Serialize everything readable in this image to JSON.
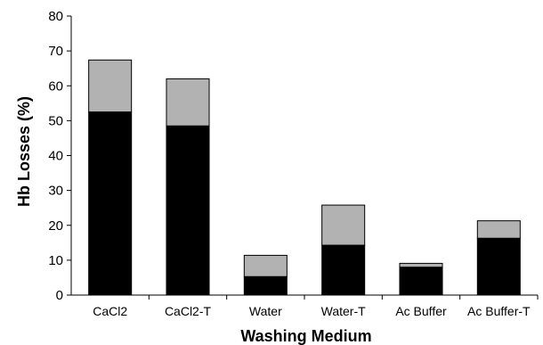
{
  "chart_data": {
    "type": "bar",
    "stacked": true,
    "title": "",
    "xlabel": "Washing Medium",
    "ylabel": "Hb Losses (%)",
    "ylim": [
      0,
      80
    ],
    "yticks": [
      0,
      10,
      20,
      30,
      40,
      50,
      60,
      70,
      80
    ],
    "grid": false,
    "legend": "none",
    "categories": [
      "CaCl2",
      "CaCl2-T",
      "Water",
      "Water-T",
      "Ac Buffer",
      "Ac Buffer-T"
    ],
    "series": [
      {
        "values": [
          52.5,
          48.5,
          5.3,
          14.3,
          8.0,
          16.3
        ],
        "color": "#000000"
      },
      {
        "values": [
          14.9,
          13.5,
          6.1,
          11.5,
          1.1,
          5.0
        ],
        "color": "#b2b2b2"
      }
    ]
  }
}
